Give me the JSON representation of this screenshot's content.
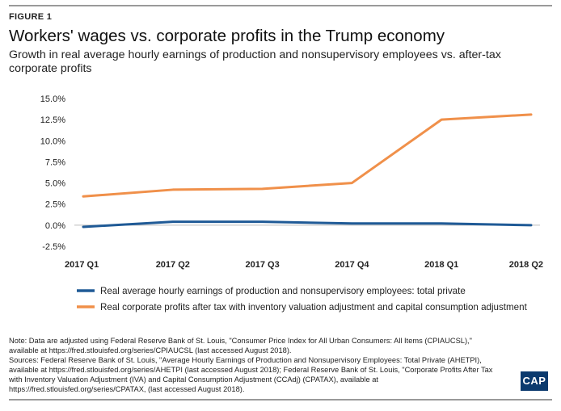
{
  "figure_label": "FIGURE 1",
  "note": "Note: Data are adjusted using Federal Reserve Bank of St. Louis, \"Consumer Price Index for All Urban Consumers: All Items (CPIAUCSL),\" available at https://fred.stlouisfed.org/series/CPIAUCSL (last accessed August 2018).",
  "sources": "Sources: Federal Reserve Bank of St. Louis, \"Average Hourly Earnings of Production and Nonsupervisory Employees: Total Private (AHETPI), available at https://fred.stlouisfed.org/series/AHETPI (last accessed August 2018); Federal Reserve Bank of St. Louis, \"Corporate Profits After Tax with Inventory Valuation Adjustment (IVA) and Capital Consumption Adjustment (CCAdj) (CPATAX), available at https://fred.stlouisfed.org/series/CPATAX, (last accessed August 2018).",
  "logo_text": "CAP",
  "chart_data": {
    "type": "line",
    "title": "Workers' wages vs. corporate profits in the Trump economy",
    "subtitle": "Growth in real average hourly earnings of production and nonsupervisory employees vs. after-tax corporate profits",
    "categories": [
      "2017 Q1",
      "2017 Q2",
      "2017 Q3",
      "2017 Q4",
      "2018 Q1",
      "2018 Q2"
    ],
    "ylim": [
      -2.5,
      15.0
    ],
    "yticks": [
      15.0,
      12.5,
      10.0,
      7.5,
      5.0,
      2.5,
      0.0,
      -2.5
    ],
    "ytick_labels": [
      "15.0%",
      "12.5%",
      "10.0%",
      "7.5%",
      "5.0%",
      "2.5%",
      "0.0%",
      "-2.5%"
    ],
    "grid": false,
    "legend_position": "bottom",
    "series": [
      {
        "name": "Real average hourly earnings of production and nonsupervisory employees: total private",
        "color": "#1f5a96",
        "values": [
          -0.2,
          0.4,
          0.4,
          0.2,
          0.2,
          0.0
        ]
      },
      {
        "name": "Real corporate profits after tax with inventory valuation adjustment and capital consumption adjustment",
        "color": "#f0904a",
        "values": [
          3.4,
          4.2,
          4.3,
          5.0,
          12.5,
          13.1
        ]
      }
    ]
  }
}
